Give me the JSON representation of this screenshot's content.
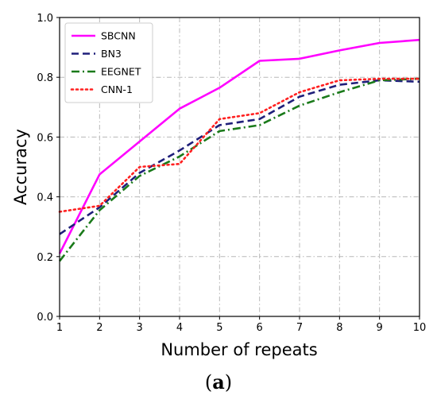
{
  "chart_data": {
    "type": "line",
    "xlabel": "Number of repeats",
    "ylabel": "Accuracy",
    "x": [
      1,
      2,
      3,
      4,
      5,
      6,
      7,
      8,
      9,
      10
    ],
    "xlim": [
      1,
      10
    ],
    "ylim": [
      0.0,
      1.0
    ],
    "yticks": [
      "0.0",
      "0.2",
      "0.4",
      "0.6",
      "0.8",
      "1.0"
    ],
    "xticks": [
      "1",
      "2",
      "3",
      "4",
      "5",
      "6",
      "7",
      "8",
      "9",
      "10"
    ],
    "grid": true,
    "legend_position": "top-left",
    "series": [
      {
        "name": "SBCNN",
        "color": "#ff00ff",
        "dash": "solid",
        "values": [
          0.21,
          0.475,
          0.585,
          0.695,
          0.765,
          0.855,
          0.862,
          0.89,
          0.915,
          0.925
        ]
      },
      {
        "name": "BN3",
        "color": "#1f1f7a",
        "dash": "dashed",
        "values": [
          0.275,
          0.365,
          0.48,
          0.555,
          0.64,
          0.66,
          0.735,
          0.775,
          0.79,
          0.785
        ]
      },
      {
        "name": "EEGNET",
        "color": "#1a7a1a",
        "dash": "dashdot",
        "values": [
          0.185,
          0.355,
          0.47,
          0.535,
          0.62,
          0.64,
          0.705,
          0.75,
          0.79,
          0.795
        ]
      },
      {
        "name": "CNN-1",
        "color": "#ff2020",
        "dash": "dotted",
        "values": [
          0.35,
          0.37,
          0.5,
          0.51,
          0.66,
          0.68,
          0.75,
          0.79,
          0.795,
          0.795
        ]
      }
    ]
  },
  "caption": {
    "open": "(",
    "letter": "a",
    "close": ")"
  }
}
